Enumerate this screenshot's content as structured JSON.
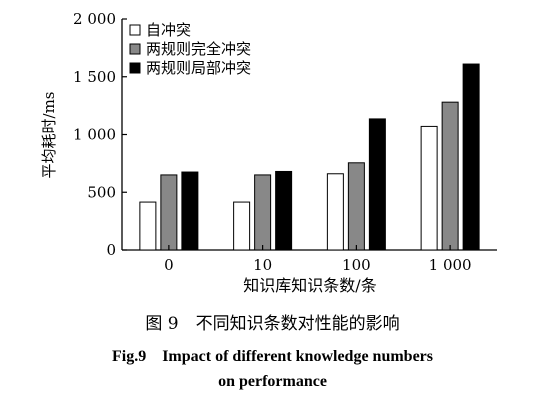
{
  "chart_data": {
    "type": "bar",
    "categories": [
      "0",
      "10",
      "100",
      "1 000"
    ],
    "series": [
      {
        "name": "自冲突",
        "values": [
          415,
          415,
          660,
          1070
        ],
        "color": "#ffffff"
      },
      {
        "name": "两规则完全冲突",
        "values": [
          650,
          650,
          755,
          1280
        ],
        "color": "#888888"
      },
      {
        "name": "两规则局部冲突",
        "values": [
          675,
          680,
          1135,
          1610
        ],
        "color": "#000000"
      }
    ],
    "xlabel": "知识库知识条数/条",
    "ylabel": "平均耗时/ms",
    "ylim": [
      0,
      2000
    ],
    "yticks": [
      0,
      500,
      1000,
      1500,
      2000
    ],
    "ytick_labels": [
      "0",
      "500",
      "1 000",
      "1 500",
      "2 000"
    ],
    "legend_position": "top-left",
    "grid": false
  },
  "caption": {
    "cn": "图 9　不同知识条数对性能的影响",
    "en_line1": "Fig.9　Impact of different knowledge numbers",
    "en_line2": "on performance"
  }
}
